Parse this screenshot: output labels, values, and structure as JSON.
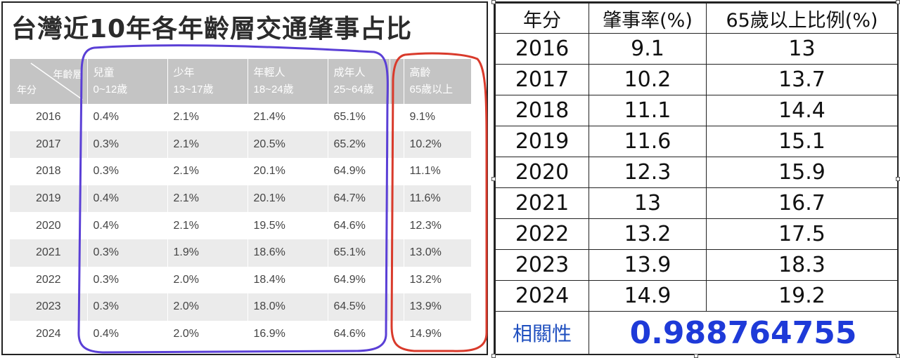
{
  "left": {
    "title": "台灣近10年各年齡層交通肇事占比",
    "corner_top": "年齡層",
    "corner_bottom": "年分",
    "columns": [
      {
        "name": "兒童",
        "range": "0~12歲"
      },
      {
        "name": "少年",
        "range": "13~17歲"
      },
      {
        "name": "年輕人",
        "range": "18~24歲"
      },
      {
        "name": "成年人",
        "range": "25~64歲"
      },
      {
        "name": "高齡",
        "range": "65歲以上"
      }
    ],
    "rows": [
      {
        "year": "2016",
        "values": [
          "0.4%",
          "2.1%",
          "21.4%",
          "65.1%",
          "9.1%"
        ]
      },
      {
        "year": "2017",
        "values": [
          "0.3%",
          "2.1%",
          "20.5%",
          "65.2%",
          "10.2%"
        ]
      },
      {
        "year": "2018",
        "values": [
          "0.3%",
          "2.1%",
          "20.1%",
          "64.9%",
          "11.1%"
        ]
      },
      {
        "year": "2019",
        "values": [
          "0.4%",
          "2.1%",
          "20.1%",
          "64.7%",
          "11.6%"
        ]
      },
      {
        "year": "2020",
        "values": [
          "0.4%",
          "2.1%",
          "19.5%",
          "64.6%",
          "12.3%"
        ]
      },
      {
        "year": "2021",
        "values": [
          "0.3%",
          "1.9%",
          "18.6%",
          "65.1%",
          "13.0%"
        ]
      },
      {
        "year": "2022",
        "values": [
          "0.3%",
          "2.0%",
          "18.4%",
          "64.9%",
          "13.2%"
        ]
      },
      {
        "year": "2023",
        "values": [
          "0.3%",
          "2.0%",
          "18.0%",
          "64.5%",
          "13.9%"
        ]
      },
      {
        "year": "2024",
        "values": [
          "0.4%",
          "2.0%",
          "16.9%",
          "64.6%",
          "14.9%"
        ]
      }
    ],
    "annotation_colors": {
      "purple": "#5a3fd6",
      "red": "#d93a2b"
    }
  },
  "right": {
    "headers": [
      "年分",
      "肇事率(%)",
      "65歲以上比例(%)"
    ],
    "rows": [
      [
        "2016",
        "9.1",
        "13"
      ],
      [
        "2017",
        "10.2",
        "13.7"
      ],
      [
        "2018",
        "11.1",
        "14.4"
      ],
      [
        "2019",
        "11.6",
        "15.1"
      ],
      [
        "2020",
        "12.3",
        "15.9"
      ],
      [
        "2021",
        "13",
        "16.7"
      ],
      [
        "2022",
        "13.2",
        "17.5"
      ],
      [
        "2023",
        "13.9",
        "18.3"
      ],
      [
        "2024",
        "14.9",
        "19.2"
      ]
    ],
    "correlation_label": "相關性",
    "correlation_value": "0.988764755",
    "correlation_color": "#1e3ad8"
  },
  "chart_data": [
    {
      "type": "table",
      "title": "台灣近10年各年齡層交通肇事占比",
      "row_header": "年分",
      "column_header": "年齡層",
      "columns": [
        "兒童 0~12歲",
        "少年 13~17歲",
        "年輕人 18~24歲",
        "成年人 25~64歲",
        "高齡 65歲以上"
      ],
      "rows": [
        "2016",
        "2017",
        "2018",
        "2019",
        "2020",
        "2021",
        "2022",
        "2023",
        "2024"
      ],
      "values": [
        [
          0.4,
          2.1,
          21.4,
          65.1,
          9.1
        ],
        [
          0.3,
          2.1,
          20.5,
          65.2,
          10.2
        ],
        [
          0.3,
          2.1,
          20.1,
          64.9,
          11.1
        ],
        [
          0.4,
          2.1,
          20.1,
          64.7,
          11.6
        ],
        [
          0.4,
          2.1,
          19.5,
          64.6,
          12.3
        ],
        [
          0.3,
          1.9,
          18.6,
          65.1,
          13.0
        ],
        [
          0.3,
          2.0,
          18.4,
          64.9,
          13.2
        ],
        [
          0.3,
          2.0,
          18.0,
          64.5,
          13.9
        ],
        [
          0.4,
          2.0,
          16.9,
          64.6,
          14.9
        ]
      ]
    },
    {
      "type": "table",
      "columns": [
        "年分",
        "肇事率(%)",
        "65歲以上比例(%)"
      ],
      "values": [
        [
          2016,
          9.1,
          13
        ],
        [
          2017,
          10.2,
          13.7
        ],
        [
          2018,
          11.1,
          14.4
        ],
        [
          2019,
          11.6,
          15.1
        ],
        [
          2020,
          12.3,
          15.9
        ],
        [
          2021,
          13,
          16.7
        ],
        [
          2022,
          13.2,
          17.5
        ],
        [
          2023,
          13.9,
          18.3
        ],
        [
          2024,
          14.9,
          19.2
        ]
      ],
      "correlation_label": "相關性",
      "correlation": 0.988764755
    }
  ]
}
